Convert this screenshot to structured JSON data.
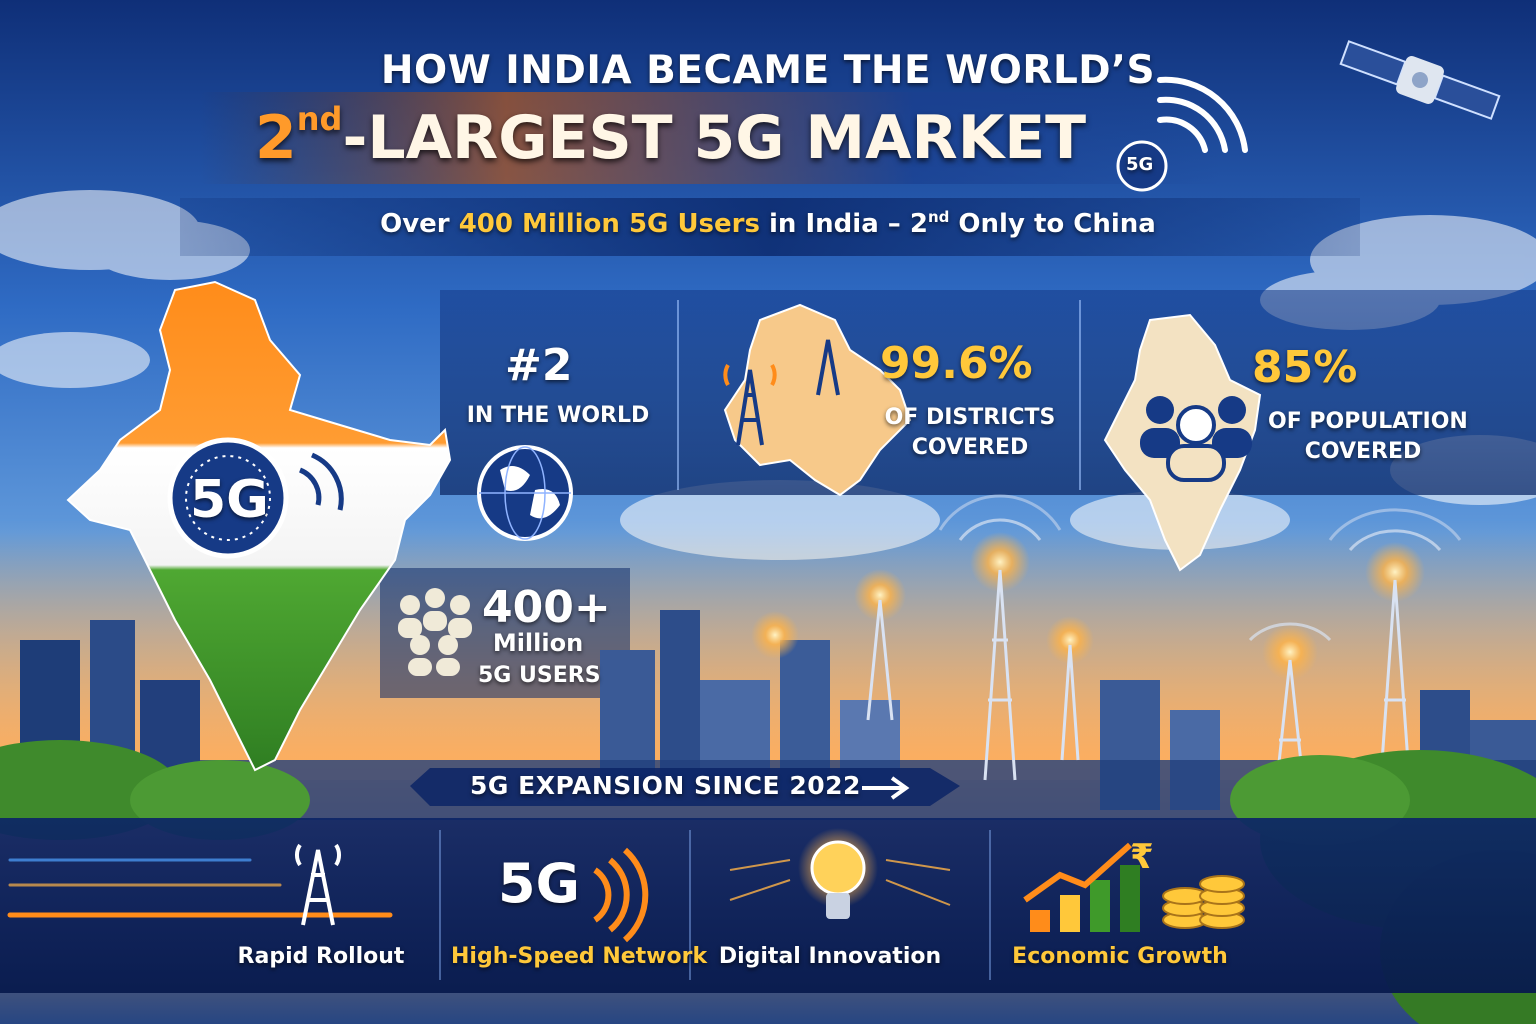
{
  "header": {
    "title_line1": "HOW INDIA BECAME THE WORLD’S",
    "title_num": "2",
    "title_sup": "nd",
    "title_rest": "-LARGEST 5G MARKET",
    "badge": "5G"
  },
  "subtitle": {
    "prefix": "Over ",
    "highlight": "400 Million 5G Users",
    "middle": " in India – 2",
    "sup": "nd",
    "suffix": " Only to China"
  },
  "map_badge": "5G",
  "stats": {
    "rank": {
      "value": "#2",
      "label": "IN THE WORLD"
    },
    "districts": {
      "value": "99.6%",
      "label_line1": "OF DISTRICTS",
      "label_line2": "COVERED"
    },
    "population": {
      "value": "85%",
      "label_line1": "OF POPULATION",
      "label_line2": "COVERED"
    },
    "users": {
      "value": "400+",
      "label_line1": "Million",
      "label_line2": "5G USERS"
    }
  },
  "expansion_label": "5G EXPANSION SINCE 2022",
  "features": [
    {
      "label": "Rapid Rollout",
      "icon": "tower-icon"
    },
    {
      "label": "High-Speed Network",
      "icon": "5g-signal-icon"
    },
    {
      "label": "Digital Innovation",
      "icon": "lightbulb-icon"
    },
    {
      "label": "Economic Growth",
      "icon": "growth-chart-icon"
    }
  ],
  "feature_network_badge": "5G",
  "colors": {
    "saffron": "#ff8c1a",
    "green": "#3f9a2a",
    "gold": "#ffc83a",
    "navy": "#163a86"
  }
}
